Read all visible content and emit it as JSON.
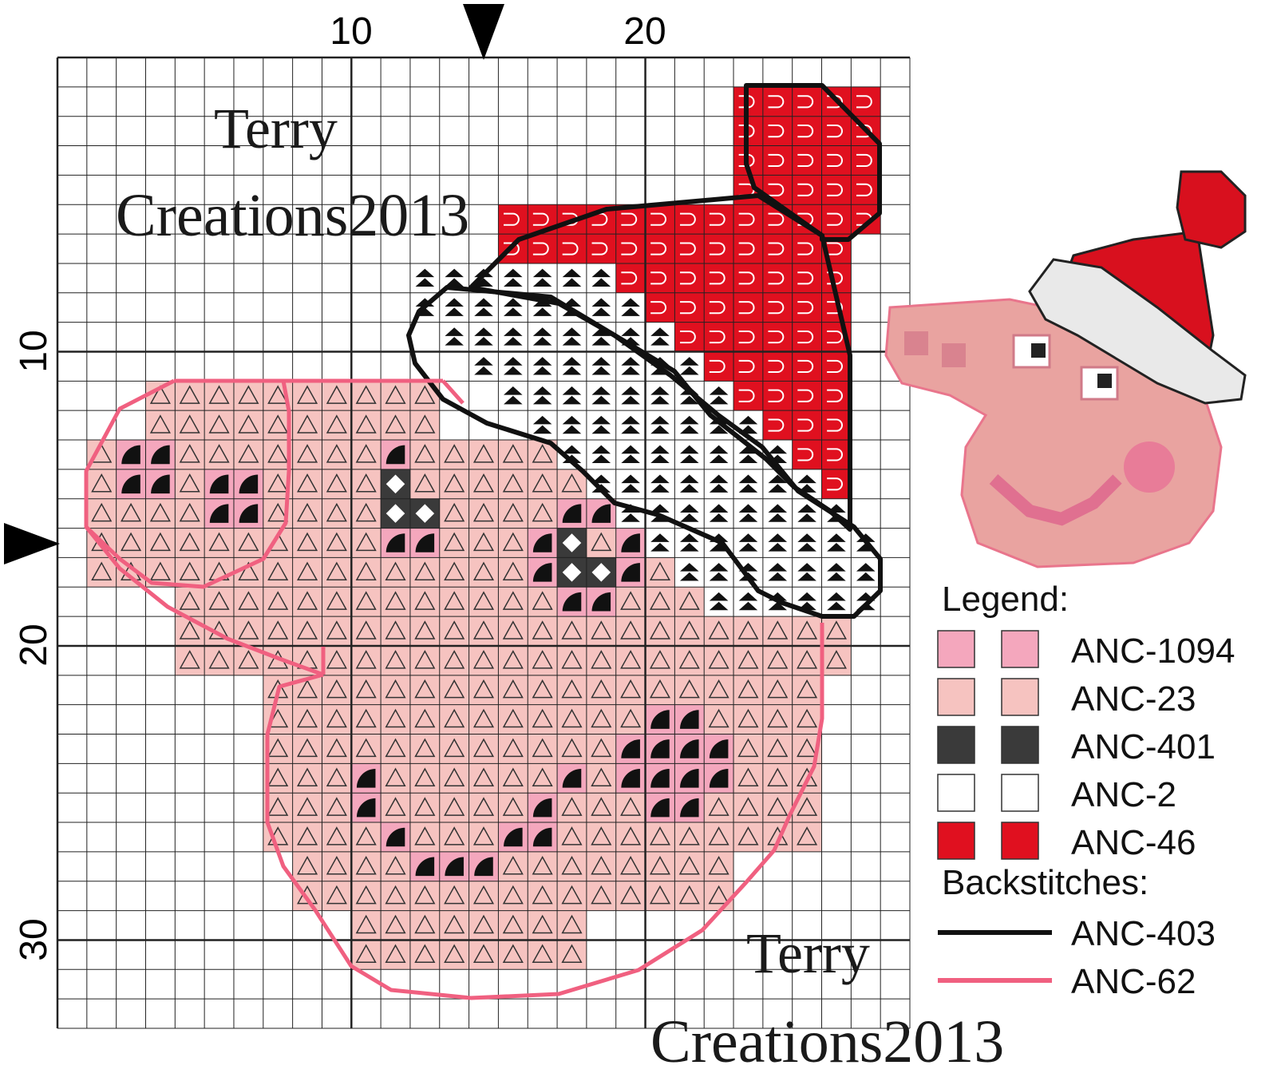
{
  "axis": {
    "top_labels": [
      "10",
      "20"
    ],
    "left_labels": [
      "10",
      "20",
      "30"
    ]
  },
  "watermarks": [
    {
      "line1": "Terry",
      "line2": "Creations2013"
    },
    {
      "line1": "Terry",
      "line2": "Creations2013"
    }
  ],
  "legend": {
    "title": "Legend:",
    "items": [
      {
        "symbol": "quarter-arc",
        "color": "#f4a7bd",
        "code": "ANC-1094"
      },
      {
        "symbol": "triangle",
        "color": "#f6c3c0",
        "code": "ANC-23"
      },
      {
        "symbol": "diamond",
        "color": "#3a3a3a",
        "code": "ANC-401"
      },
      {
        "symbol": "double-arrow",
        "color": "#ffffff",
        "code": "ANC-2"
      },
      {
        "symbol": "d-hook",
        "color": "#e0101f",
        "code": "ANC-46"
      }
    ],
    "backstitch_title": "Backstitches:",
    "backstitches": [
      {
        "color": "#111111",
        "code": "ANC-403"
      },
      {
        "color": "#f06080",
        "code": "ANC-62"
      }
    ]
  },
  "colors": {
    "grid": "#222222",
    "pink": "#f4a7bd",
    "lightpink": "#f6c3c0",
    "dark": "#3a3a3a",
    "white": "#ffffff",
    "red": "#e0101f"
  }
}
